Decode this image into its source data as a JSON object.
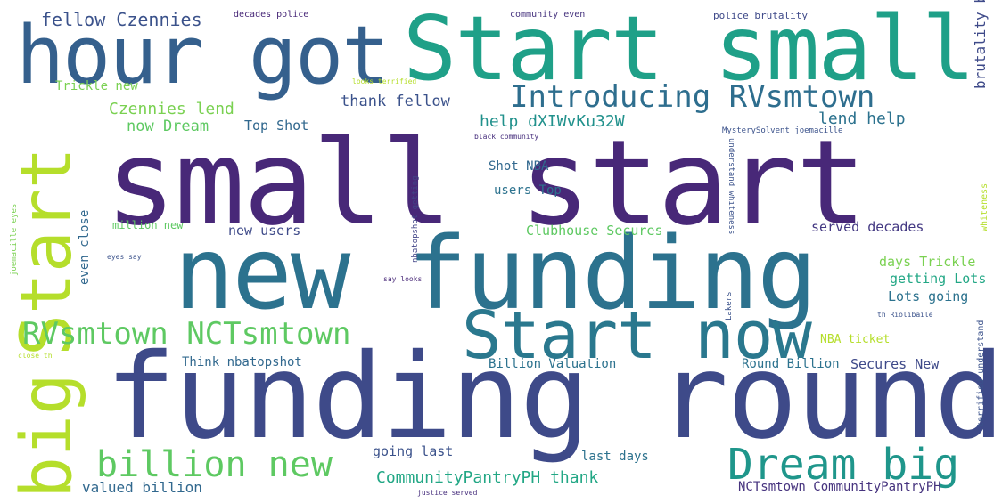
{
  "words": [
    {
      "text": "small start",
      "color": "#482878"
    },
    {
      "text": "funding round",
      "color": "#3e4a89"
    },
    {
      "text": "new funding",
      "color": "#2c728e"
    },
    {
      "text": "Start small",
      "color": "#1fa088"
    },
    {
      "text": "hour got",
      "color": "#35608d"
    },
    {
      "text": "Start now",
      "color": "#2a788e"
    },
    {
      "text": "big",
      "color": "#b5de2b"
    },
    {
      "text": "Start",
      "color": "#b5de2b"
    },
    {
      "text": "Dream big",
      "color": "#1f968b"
    },
    {
      "text": "billion new",
      "color": "#5ec962"
    },
    {
      "text": "Introducing RVsmtown",
      "color": "#2e6e8e"
    },
    {
      "text": "RVsmtown NCTsmtown",
      "color": "#5ec962"
    },
    {
      "text": "fellow Czennies",
      "color": "#3b528b"
    },
    {
      "text": "decades police",
      "color": "#482878"
    },
    {
      "text": "community even",
      "color": "#46337e"
    },
    {
      "text": "police brutality",
      "color": "#3e4989"
    },
    {
      "text": "Trickle new",
      "color": "#7ad151"
    },
    {
      "text": "looks terrified",
      "color": "#b5de2b"
    },
    {
      "text": "thank fellow",
      "color": "#3b528b"
    },
    {
      "text": "help dXIWvKu32W",
      "color": "#21918c"
    },
    {
      "text": "lend help",
      "color": "#2c728e"
    },
    {
      "text": "Czennies lend",
      "color": "#7ad151"
    },
    {
      "text": "now Dream",
      "color": "#5ec962"
    },
    {
      "text": "Top Shot",
      "color": "#31688e"
    },
    {
      "text": "black community",
      "color": "#472f7d"
    },
    {
      "text": "MysterySolvent joemacille",
      "color": "#3b528b"
    },
    {
      "text": "Shot NBA",
      "color": "#31688e"
    },
    {
      "text": "users Top",
      "color": "#2c728e"
    },
    {
      "text": "million new",
      "color": "#3e4a89"
    },
    {
      "text": "new users",
      "color": "#5ec962"
    },
    {
      "text": "Clubhouse Secures",
      "color": "#3e4a89"
    },
    {
      "text": "served decades",
      "color": "#5ec962"
    },
    {
      "text": "days Trickle",
      "color": "#443983"
    },
    {
      "text": "getting Lots",
      "color": "#7ad151"
    },
    {
      "text": "Lots going",
      "color": "#22a785"
    },
    {
      "text": "NBA ticket",
      "color": "#2c728e"
    },
    {
      "text": "Think nbatopshot",
      "color": "#b5de2b"
    },
    {
      "text": "Billion Valuation",
      "color": "#31688e"
    },
    {
      "text": "Round Billion",
      "color": "#2c728e"
    },
    {
      "text": "Secures New",
      "color": "#2c728e"
    },
    {
      "text": "going last",
      "color": "#3e4989"
    },
    {
      "text": "last days",
      "color": "#3b528b"
    },
    {
      "text": "valued billion",
      "color": "#2c728e"
    },
    {
      "text": "CommunityPantryPH thank",
      "color": "#31688e"
    },
    {
      "text": "NCTsmtown CommunityPantryPH",
      "color": "#22a785"
    },
    {
      "text": "justice served",
      "color": "#46337e"
    },
    {
      "text": "even close",
      "color": "#472f7d"
    },
    {
      "text": "nbatopshot getting",
      "color": "#31688e"
    },
    {
      "text": "understand whiteness",
      "color": "#414487"
    },
    {
      "text": "Lakers",
      "color": "#3b528b"
    },
    {
      "text": "whiteness",
      "color": "#3b528b"
    },
    {
      "text": "terrified understand",
      "color": "#b5de2b"
    },
    {
      "text": "brutality black",
      "color": "#3b528b"
    },
    {
      "text": "joemacille eyes",
      "color": "#7ad151"
    },
    {
      "text": "eyes say",
      "color": "#3b528b"
    },
    {
      "text": "say looks",
      "color": "#482878"
    },
    {
      "text": "close th",
      "color": "#b5de2b"
    },
    {
      "text": "th Riolibaile",
      "color": "#3b528b"
    }
  ]
}
